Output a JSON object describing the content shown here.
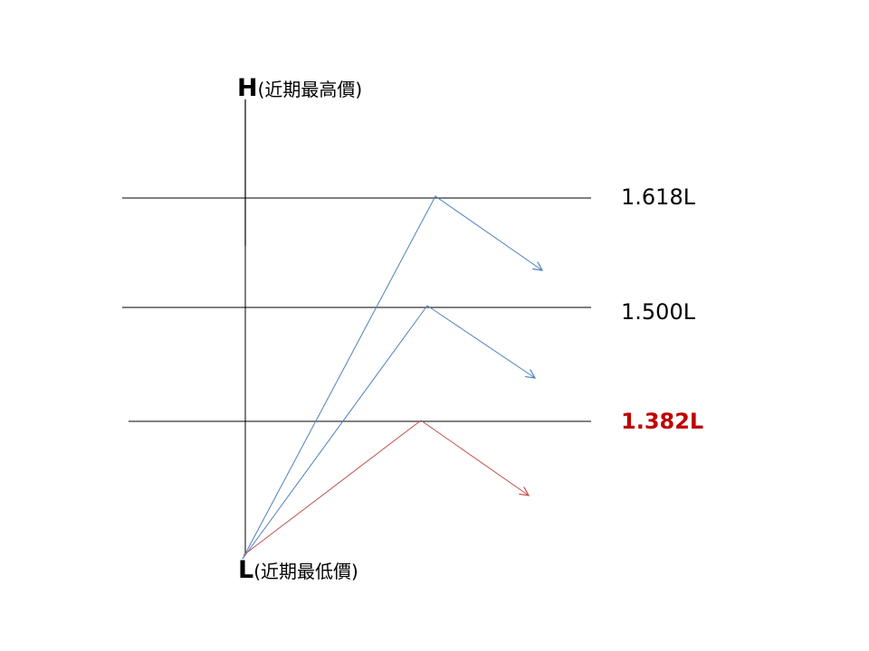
{
  "colors": {
    "line": "#000000",
    "blue_arrow": "#4f81bd",
    "red_arrow": "#c0504d",
    "highlight_text": "#c00000",
    "text": "#000000"
  },
  "axis": {
    "high_letter": "H",
    "high_text": "(近期最高價)",
    "low_letter": "L",
    "low_text": "(近期最低價)"
  },
  "levels": [
    {
      "label": "1.618L",
      "color": "#000000",
      "arrow": "blue"
    },
    {
      "label": "1.500L",
      "color": "#000000",
      "arrow": "blue"
    },
    {
      "label": "1.382L",
      "color": "#c00000",
      "arrow": "red"
    }
  ]
}
